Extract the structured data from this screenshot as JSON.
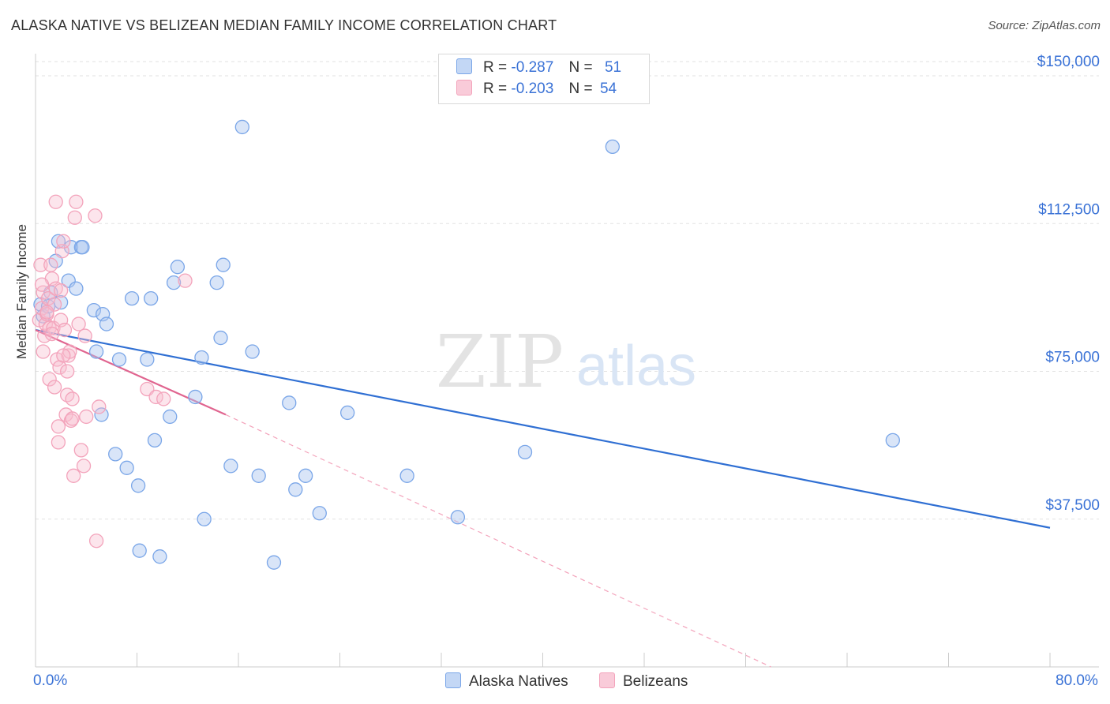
{
  "title": "ALASKA NATIVE VS BELIZEAN MEDIAN FAMILY INCOME CORRELATION CHART",
  "source": "Source: ZipAtlas.com",
  "watermark": {
    "zip": "ZIP",
    "atlas": "atlas"
  },
  "legend": {
    "series1": {
      "r_label": "R =",
      "r_value": "-0.287",
      "n_label": "N =",
      "n_value": "51"
    },
    "series2": {
      "r_label": "R =",
      "r_value": "-0.203",
      "n_label": "N =",
      "n_value": "54"
    }
  },
  "bottom_legend": {
    "series1": "Alaska Natives",
    "series2": "Belizeans"
  },
  "chart_data": {
    "type": "scatter",
    "title": "ALASKA NATIVE VS BELIZEAN MEDIAN FAMILY INCOME CORRELATION CHART",
    "xlabel": "",
    "ylabel": "Median Family Income",
    "xlim": [
      0,
      80
    ],
    "ylim": [
      0,
      150000
    ],
    "x_tick_labels": [
      "0.0%",
      "80.0%"
    ],
    "y_ticks": [
      37500,
      75000,
      112500,
      150000
    ],
    "y_tick_labels": [
      "$37,500",
      "$75,000",
      "$112,500",
      "$150,000"
    ],
    "grid": true,
    "legend_position": "top-center",
    "colors": {
      "series1": "#7aa6e8",
      "series1_line": "#2f6fd3",
      "series2": "#f3a3bb",
      "series2_line": "#e0648f",
      "axis_text": "#3a72d6"
    },
    "series": [
      {
        "name": "Alaska Natives",
        "r": -0.287,
        "n": 51,
        "trend": {
          "x": [
            0,
            80
          ],
          "y": [
            85500,
            35300
          ]
        },
        "points": [
          [
            0.4,
            92000
          ],
          [
            0.6,
            89000
          ],
          [
            1.0,
            91500
          ],
          [
            1.2,
            95000
          ],
          [
            1.6,
            103000
          ],
          [
            1.8,
            108000
          ],
          [
            2.0,
            92500
          ],
          [
            2.6,
            98000
          ],
          [
            2.8,
            106500
          ],
          [
            3.2,
            96000
          ],
          [
            3.6,
            106500
          ],
          [
            3.7,
            106500
          ],
          [
            4.6,
            90500
          ],
          [
            4.8,
            80000
          ],
          [
            5.3,
            89500
          ],
          [
            5.6,
            87000
          ],
          [
            5.2,
            64000
          ],
          [
            6.3,
            54000
          ],
          [
            6.6,
            78000
          ],
          [
            7.2,
            50500
          ],
          [
            7.6,
            93500
          ],
          [
            8.1,
            46000
          ],
          [
            8.2,
            29500
          ],
          [
            8.8,
            78000
          ],
          [
            9.1,
            93500
          ],
          [
            9.4,
            57500
          ],
          [
            9.8,
            28000
          ],
          [
            10.6,
            63500
          ],
          [
            10.9,
            97500
          ],
          [
            11.2,
            101500
          ],
          [
            12.6,
            68500
          ],
          [
            13.1,
            78500
          ],
          [
            13.3,
            37500
          ],
          [
            14.3,
            97500
          ],
          [
            14.6,
            83500
          ],
          [
            14.8,
            102000
          ],
          [
            15.4,
            51000
          ],
          [
            16.3,
            137000
          ],
          [
            17.1,
            80000
          ],
          [
            17.6,
            48500
          ],
          [
            18.8,
            26500
          ],
          [
            20.0,
            67000
          ],
          [
            20.5,
            45000
          ],
          [
            21.3,
            48500
          ],
          [
            22.4,
            39000
          ],
          [
            24.6,
            64500
          ],
          [
            29.3,
            48500
          ],
          [
            33.3,
            38000
          ],
          [
            38.6,
            54500
          ],
          [
            45.5,
            132000
          ],
          [
            67.6,
            57500
          ]
        ]
      },
      {
        "name": "Belizeans",
        "r": -0.203,
        "n": 54,
        "trend": {
          "x": [
            0,
            15
          ],
          "y": [
            85500,
            64000
          ]
        },
        "trend_extrapolated": {
          "x": [
            15,
            58
          ],
          "y": [
            64000,
            0
          ]
        },
        "points": [
          [
            0.3,
            88000
          ],
          [
            0.4,
            102000
          ],
          [
            0.5,
            91000
          ],
          [
            0.6,
            95000
          ],
          [
            0.6,
            80000
          ],
          [
            0.7,
            84000
          ],
          [
            0.8,
            87000
          ],
          [
            0.9,
            89500
          ],
          [
            1.0,
            93500
          ],
          [
            1.1,
            73000
          ],
          [
            1.1,
            86000
          ],
          [
            1.2,
            102000
          ],
          [
            1.3,
            98500
          ],
          [
            1.4,
            86000
          ],
          [
            1.5,
            92000
          ],
          [
            1.5,
            71000
          ],
          [
            1.6,
            96000
          ],
          [
            1.6,
            118000
          ],
          [
            1.7,
            78000
          ],
          [
            1.8,
            61000
          ],
          [
            1.8,
            57000
          ],
          [
            1.9,
            76000
          ],
          [
            2.0,
            88000
          ],
          [
            2.0,
            95500
          ],
          [
            2.1,
            105500
          ],
          [
            2.2,
            108000
          ],
          [
            2.3,
            85500
          ],
          [
            2.4,
            64000
          ],
          [
            2.5,
            75000
          ],
          [
            2.5,
            69000
          ],
          [
            2.6,
            79000
          ],
          [
            2.7,
            80000
          ],
          [
            2.8,
            62500
          ],
          [
            2.9,
            68000
          ],
          [
            2.9,
            63000
          ],
          [
            3.0,
            48500
          ],
          [
            3.1,
            114000
          ],
          [
            3.2,
            118000
          ],
          [
            3.4,
            87000
          ],
          [
            3.6,
            55000
          ],
          [
            3.8,
            51000
          ],
          [
            3.9,
            84000
          ],
          [
            4.0,
            63500
          ],
          [
            4.7,
            114500
          ],
          [
            4.8,
            32000
          ],
          [
            5.0,
            66000
          ],
          [
            8.8,
            70500
          ],
          [
            9.5,
            68500
          ],
          [
            10.1,
            68000
          ],
          [
            11.8,
            98000
          ],
          [
            0.5,
            97000
          ],
          [
            1.3,
            84500
          ],
          [
            2.2,
            79000
          ],
          [
            0.9,
            90000
          ]
        ]
      }
    ]
  }
}
